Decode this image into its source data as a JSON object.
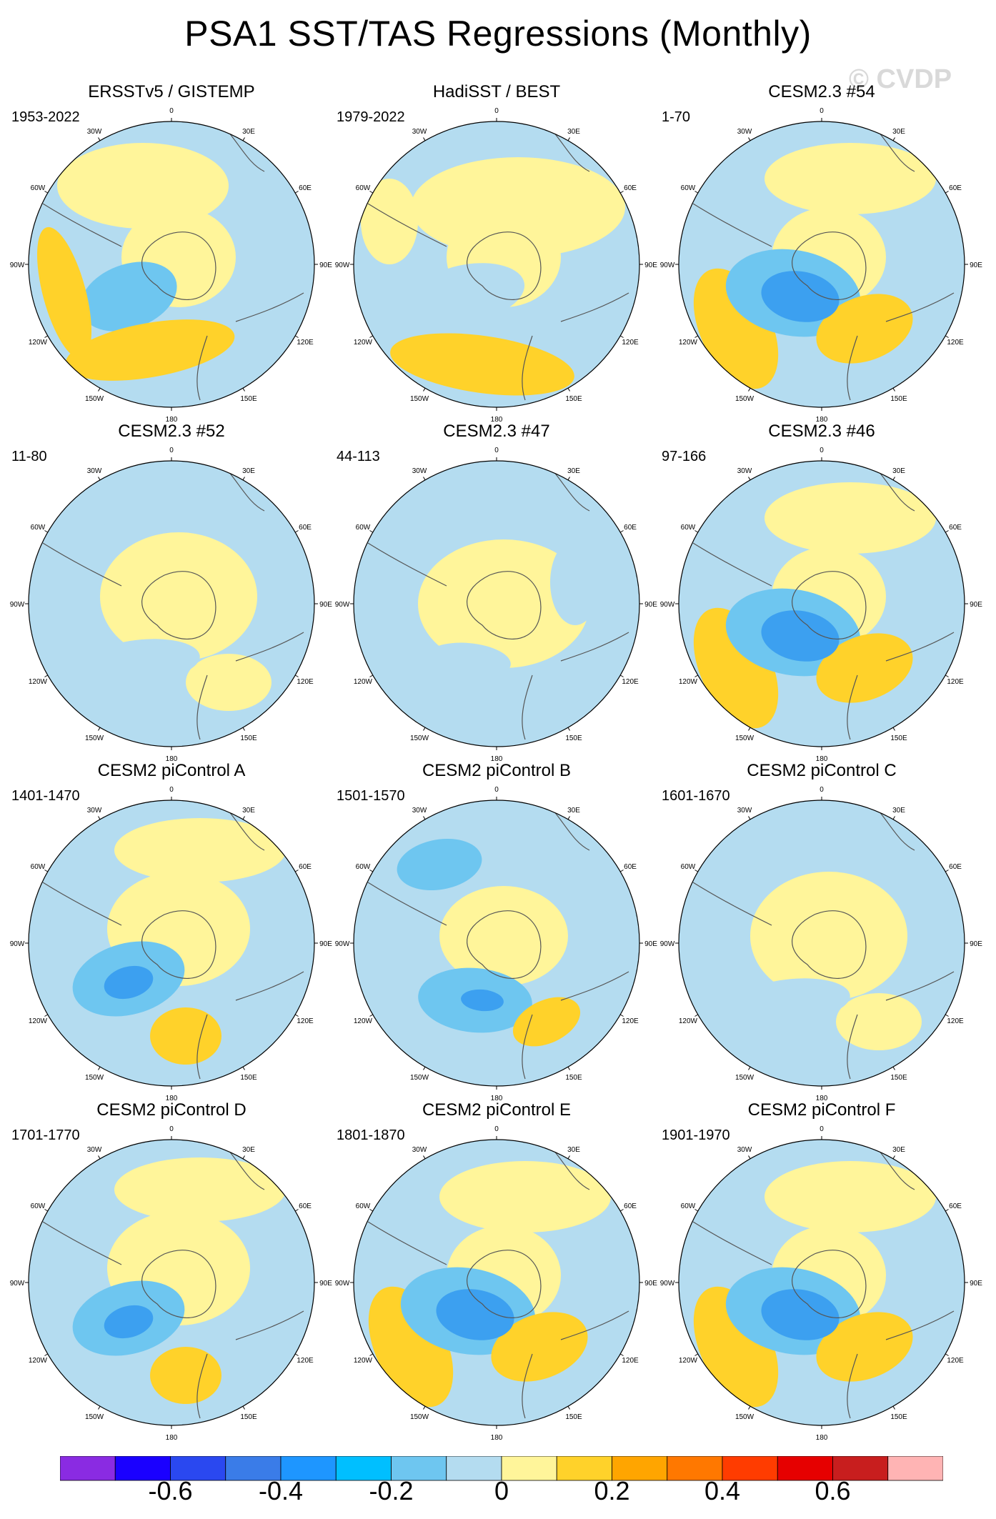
{
  "title": "PSA1 SST/TAS Regressions (Monthly)",
  "watermark": "© CVDP",
  "lon_labels": [
    "0",
    "30E",
    "60E",
    "90E",
    "120E",
    "150E",
    "180",
    "150W",
    "120W",
    "90W",
    "60W",
    "30W"
  ],
  "panels": [
    {
      "title": "ERSSTv5 / GISTEMP",
      "period": "1953-2022",
      "pattern": "obs1"
    },
    {
      "title": "HadiSST / BEST",
      "period": "1979-2022",
      "pattern": "obs2"
    },
    {
      "title": "CESM2.3 #54",
      "period": "1-70",
      "pattern": "strong"
    },
    {
      "title": "CESM2.3 #52",
      "period": "11-80",
      "pattern": "weak"
    },
    {
      "title": "CESM2.3 #47",
      "period": "44-113",
      "pattern": "weak2"
    },
    {
      "title": "CESM2.3 #46",
      "period": "97-166",
      "pattern": "strong"
    },
    {
      "title": "CESM2 piControl A",
      "period": "1401-1470",
      "pattern": "mid"
    },
    {
      "title": "CESM2 piControl B",
      "period": "1501-1570",
      "pattern": "midB"
    },
    {
      "title": "CESM2 piControl C",
      "period": "1601-1670",
      "pattern": "weak"
    },
    {
      "title": "CESM2 piControl D",
      "period": "1701-1770",
      "pattern": "mid"
    },
    {
      "title": "CESM2 piControl E",
      "period": "1801-1870",
      "pattern": "strong"
    },
    {
      "title": "CESM2 piControl F",
      "period": "1901-1970",
      "pattern": "strong"
    }
  ],
  "colorbar": {
    "colors": [
      "#8a2be2",
      "#1a00ff",
      "#2a48f0",
      "#3a7ce8",
      "#1e96ff",
      "#00bfff",
      "#6ec6f0",
      "#b4dcf0",
      "#fff59a",
      "#ffd22a",
      "#ffa500",
      "#ff7800",
      "#ff3c00",
      "#e60000",
      "#c81e1e",
      "#ffb4b4"
    ],
    "labels": [
      "-0.6",
      "-0.4",
      "-0.2",
      "0",
      "0.2",
      "0.4",
      "0.6"
    ]
  },
  "colors": {
    "ocean_neg_light": "#b4dcf0",
    "ocean_pos_light": "#fff59a",
    "neg_mid": "#6ec6f0",
    "neg_strong": "#3ca0f0",
    "pos_mid": "#ffd22a",
    "pos_strong": "#ffa500"
  }
}
